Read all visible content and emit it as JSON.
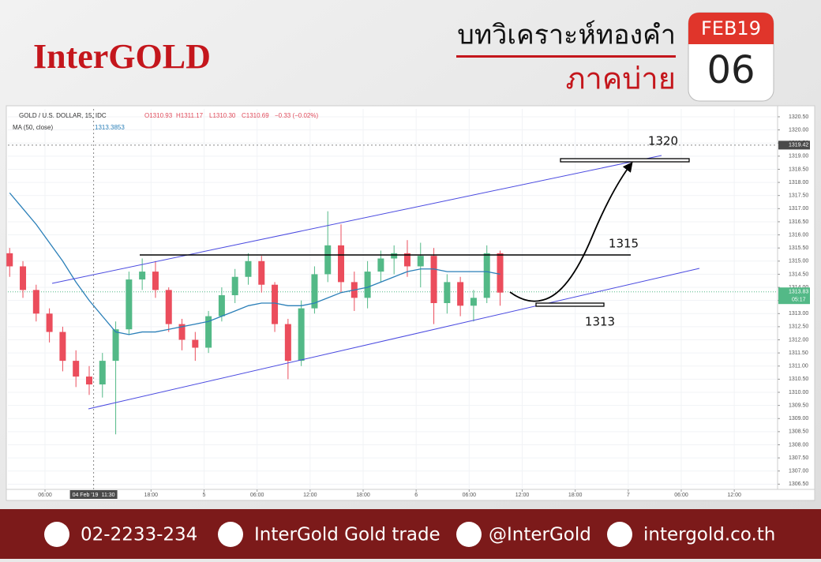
{
  "header": {
    "logo": "InterGOLD",
    "title": "บทวิเคราะห์ทองคำ",
    "subtitle": "ภาคบ่าย",
    "month": "FEB19",
    "day": "06"
  },
  "chart_data": {
    "type": "candlestick",
    "symbol": "GOLD / U.S. DOLLAR, 15, IDC",
    "ohlc_legend": [
      "O1310.93",
      "H1311.17",
      "L1310.30",
      "C1310.69",
      "−0.33 (−0.02%)"
    ],
    "x": [
      2,
      3.5,
      5,
      6.5,
      8,
      9.5,
      11,
      12.5,
      14,
      15.5,
      17,
      18.5,
      20,
      21.5,
      23,
      24.5,
      26,
      27.5,
      29,
      30.5,
      32,
      33.5,
      35,
      36.5,
      38,
      39.5,
      41,
      42.5,
      44,
      45.5,
      47,
      48.5,
      50,
      51.5,
      53,
      54.5,
      56,
      57.5
    ],
    "open": [
      1315.3,
      1314.8,
      1313.9,
      1313.0,
      1312.3,
      1311.2,
      1310.6,
      1310.3,
      1311.2,
      1312.4,
      1314.3,
      1314.6,
      1313.9,
      1312.6,
      1312.0,
      1311.7,
      1312.9,
      1313.7,
      1314.4,
      1315.0,
      1314.1,
      1312.6,
      1311.2,
      1313.2,
      1314.5,
      1315.6,
      1314.2,
      1313.6,
      1314.6,
      1315.1,
      1315.3,
      1314.8,
      1315.2,
      1313.4,
      1314.2,
      1313.3,
      1313.6,
      1315.3
    ],
    "high": [
      1315.5,
      1315.0,
      1314.1,
      1313.2,
      1312.5,
      1311.6,
      1311.0,
      1311.5,
      1312.7,
      1314.6,
      1315.1,
      1315.0,
      1314.0,
      1312.8,
      1312.3,
      1313.1,
      1314.0,
      1314.7,
      1315.3,
      1315.2,
      1314.2,
      1312.8,
      1313.5,
      1314.8,
      1316.9,
      1316.4,
      1314.6,
      1315.0,
      1315.4,
      1315.6,
      1315.8,
      1315.7,
      1315.5,
      1314.5,
      1314.4,
      1313.9,
      1315.6,
      1315.4
    ],
    "low": [
      1314.4,
      1313.6,
      1312.7,
      1311.9,
      1310.8,
      1310.2,
      1309.9,
      1309.8,
      1308.4,
      1312.2,
      1313.9,
      1313.6,
      1312.3,
      1311.6,
      1311.2,
      1311.5,
      1312.7,
      1313.4,
      1314.1,
      1313.8,
      1312.3,
      1310.5,
      1311.0,
      1313.0,
      1314.2,
      1313.8,
      1313.1,
      1313.2,
      1314.2,
      1314.5,
      1314.4,
      1314.0,
      1312.6,
      1313.0,
      1312.9,
      1312.7,
      1313.4,
      1313.3
    ],
    "close": [
      1314.8,
      1313.9,
      1313.0,
      1312.3,
      1311.2,
      1310.6,
      1310.3,
      1311.2,
      1312.4,
      1314.3,
      1314.6,
      1313.9,
      1312.6,
      1312.0,
      1311.7,
      1312.9,
      1313.7,
      1314.4,
      1315.0,
      1314.1,
      1312.6,
      1311.2,
      1313.2,
      1314.5,
      1315.6,
      1314.2,
      1313.6,
      1314.6,
      1315.1,
      1315.3,
      1314.8,
      1315.2,
      1313.4,
      1314.2,
      1313.3,
      1313.6,
      1315.3,
      1313.8
    ],
    "up_color": "#53b987",
    "down_color": "#eb4d5c",
    "indicator": {
      "name": "MA (50, close)",
      "last": "1313.3853",
      "color": "#2a7fb8",
      "values": [
        1317.6,
        1317.0,
        1316.4,
        1315.7,
        1315.0,
        1314.2,
        1313.5,
        1312.9,
        1312.3,
        1312.2,
        1312.3,
        1312.3,
        1312.4,
        1312.5,
        1312.6,
        1312.7,
        1312.9,
        1313.1,
        1313.3,
        1313.4,
        1313.4,
        1313.3,
        1313.3,
        1313.4,
        1313.6,
        1313.8,
        1313.9,
        1314.0,
        1314.2,
        1314.4,
        1314.6,
        1314.7,
        1314.7,
        1314.6,
        1314.6,
        1314.6,
        1314.6,
        1314.5
      ]
    },
    "xlim": [
      1.8,
      88.9
    ],
    "xticks": [
      {
        "value": 6,
        "label": "06:00"
      },
      {
        "value": 18,
        "label": "18:00"
      },
      {
        "value": 24,
        "label": "5"
      },
      {
        "value": 30,
        "label": "06:00"
      },
      {
        "value": 36,
        "label": "12:00"
      },
      {
        "value": 42,
        "label": "18:00"
      },
      {
        "value": 48,
        "label": "6"
      },
      {
        "value": 54,
        "label": "06:00"
      },
      {
        "value": 60,
        "label": "12:00"
      },
      {
        "value": 66,
        "label": "18:00"
      },
      {
        "value": 72,
        "label": "7"
      },
      {
        "value": 78,
        "label": "06:00"
      },
      {
        "value": 84,
        "label": "12:00"
      }
    ],
    "crosshair_x": {
      "value": 11.5,
      "date": "04 Feb '19",
      "time": "11:30"
    },
    "crosshair_y": 1319.42,
    "last_price": 1313.83,
    "countdown": "05:17",
    "ylim": [
      1306.3,
      1320.8
    ],
    "yticks": [
      {
        "value": 1306.5,
        "label": "1306.50"
      },
      {
        "value": 1307,
        "label": "1307.00"
      },
      {
        "value": 1307.5,
        "label": "1307.50"
      },
      {
        "value": 1308,
        "label": "1308.00"
      },
      {
        "value": 1308.5,
        "label": "1308.50"
      },
      {
        "value": 1309,
        "label": "1309.00"
      },
      {
        "value": 1309.5,
        "label": "1309.50"
      },
      {
        "value": 1310,
        "label": "1310.00"
      },
      {
        "value": 1310.5,
        "label": "1310.50"
      },
      {
        "value": 1311,
        "label": "1311.00"
      },
      {
        "value": 1311.5,
        "label": "1311.50"
      },
      {
        "value": 1312,
        "label": "1312.00"
      },
      {
        "value": 1312.5,
        "label": "1312.50"
      },
      {
        "value": 1313,
        "label": "1313.00"
      },
      {
        "value": 1313.5,
        "label": "1313.50"
      },
      {
        "value": 1314,
        "label": "1314.00"
      },
      {
        "value": 1314.5,
        "label": "1314.50"
      },
      {
        "value": 1315,
        "label": "1315.00"
      },
      {
        "value": 1315.5,
        "label": "1315.50"
      },
      {
        "value": 1316,
        "label": "1316.00"
      },
      {
        "value": 1316.5,
        "label": "1316.50"
      },
      {
        "value": 1317,
        "label": "1317.00"
      },
      {
        "value": 1317.5,
        "label": "1317.50"
      },
      {
        "value": 1318,
        "label": "1318.00"
      },
      {
        "value": 1318.5,
        "label": "1318.50"
      },
      {
        "value": 1319,
        "label": "1319.00"
      },
      {
        "value": 1319.5,
        "label": "1319.50"
      },
      {
        "value": 1320,
        "label": "1320.00"
      },
      {
        "value": 1320.5,
        "label": "1320.50"
      }
    ],
    "grid": true,
    "annotations": [
      "1320",
      "1315",
      "1313"
    ]
  },
  "footer": {
    "phone": "02-2233-234",
    "facebook": "InterGold Gold trade",
    "line": "@InterGold",
    "website": "intergold.co.th"
  }
}
